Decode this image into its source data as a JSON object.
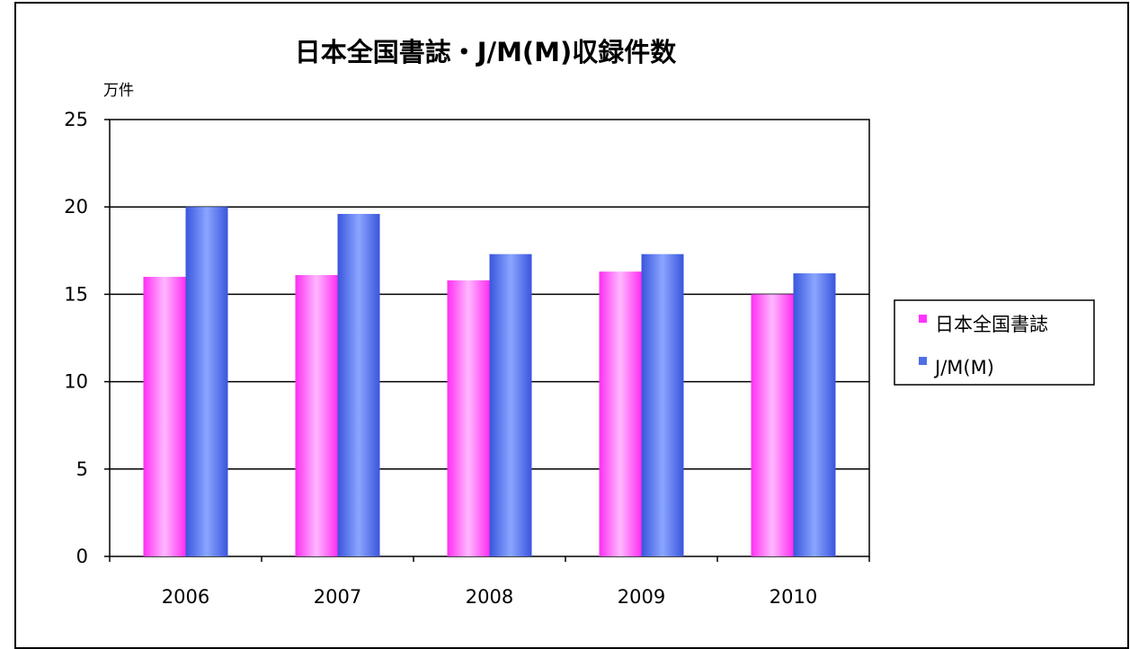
{
  "chart_data": {
    "type": "bar",
    "title": "日本全国書誌・J/M(M)収録件数",
    "ylabel": "万件",
    "xlabel": "",
    "categories": [
      "2006",
      "2007",
      "2008",
      "2009",
      "2010"
    ],
    "ylim": [
      0,
      25
    ],
    "yticks": [
      0,
      5,
      10,
      15,
      20,
      25
    ],
    "grid": true,
    "legend": "right",
    "series": [
      {
        "name": "日本全国書誌",
        "values": [
          16.0,
          16.1,
          15.8,
          16.3,
          15.0
        ],
        "color": "#ff33ff"
      },
      {
        "name": "J/M(M)",
        "values": [
          20.0,
          19.6,
          17.3,
          17.3,
          16.2
        ],
        "color": "#4f6fe6"
      }
    ]
  }
}
